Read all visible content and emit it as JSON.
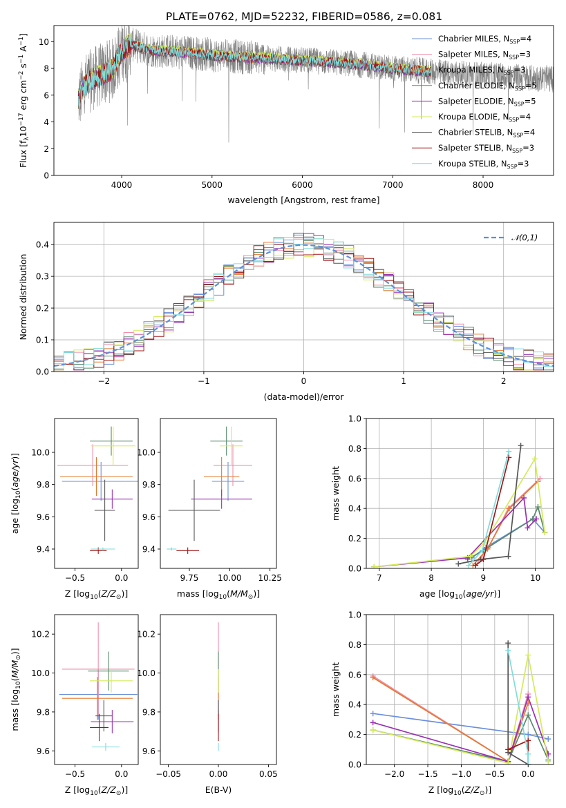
{
  "figure_title": "PLATE=0762, MJD=52232, FIBERID=0586, z=0.081",
  "series": [
    {
      "name": "Chabrier MILES, N_SSP=4",
      "leg_main": "Chabrier MILES, N",
      "leg_sub": "SSP",
      "leg_tail": "=4",
      "color": "#6a8fdc"
    },
    {
      "name": "Salpeter MILES, N_SSP=3",
      "leg_main": "Salpeter MILES, N",
      "leg_sub": "SSP",
      "leg_tail": "=3",
      "color": "#f08eaa"
    },
    {
      "name": "Kroupa MILES, N_SSP=3",
      "leg_main": "Kroupa MILES, N",
      "leg_sub": "SSP",
      "leg_tail": "=3",
      "color": "#e6782e"
    },
    {
      "name": "Chabrier ELODIE, N_SSP=5",
      "leg_main": "Chabrier ELODIE, N",
      "leg_sub": "SSP",
      "leg_tail": "=5",
      "color": "#5a8a6e"
    },
    {
      "name": "Salpeter ELODIE, N_SSP=5",
      "leg_main": "Salpeter ELODIE, N",
      "leg_sub": "SSP",
      "leg_tail": "=5",
      "color": "#9b30b4"
    },
    {
      "name": "Kroupa ELODIE, N_SSP=4",
      "leg_main": "Kroupa ELODIE, N",
      "leg_sub": "SSP",
      "leg_tail": "=4",
      "color": "#d4ea5a"
    },
    {
      "name": "Chabrier STELIB, N_SSP=4",
      "leg_main": "Chabrier STELIB, N",
      "leg_sub": "SSP",
      "leg_tail": "=4",
      "color": "#555555"
    },
    {
      "name": "Salpeter STELIB, N_SSP=3",
      "leg_main": "Salpeter STELIB, N",
      "leg_sub": "SSP",
      "leg_tail": "=3",
      "color": "#a01616"
    },
    {
      "name": "Kroupa STELIB, N_SSP=3",
      "leg_main": "Kroupa STELIB, N",
      "leg_sub": "SSP",
      "leg_tail": "=3",
      "color": "#7fdcdc"
    }
  ],
  "chart_data": [
    {
      "id": "spectrum",
      "type": "line",
      "xlabel": "wavelength [Angstrom, rest frame]",
      "ylabel": "Flux [f_λ 10^-17 erg cm^-2 s^-1 A^-1]",
      "ylabel_parts": {
        "a": "Flux [f",
        "b": "λ",
        "c": "10",
        "d": "−17",
        "e": " erg cm",
        "f": "−2",
        "g": " s",
        "h": "−1",
        "i": " A",
        "j": "−1",
        "k": "]"
      },
      "xlim": [
        3250,
        8780
      ],
      "ylim": [
        0,
        11.2
      ],
      "xticks": [
        4000,
        5000,
        6000,
        7000,
        8000
      ],
      "yticks": [
        0,
        2,
        4,
        6,
        8,
        10
      ],
      "data_color": "#808080",
      "data_wavelength_range": [
        3520,
        8780
      ],
      "continuum": {
        "x": [
          3520,
          3600,
          3700,
          3800,
          3900,
          4000,
          4100,
          4200,
          4300,
          4400,
          4500,
          4700,
          5000,
          5200,
          5500,
          6000,
          6500,
          7000,
          7500,
          8000,
          8500,
          8780
        ],
        "y": [
          5.6,
          6.8,
          7.3,
          7.6,
          7.9,
          9.3,
          9.8,
          9.6,
          9.4,
          9.3,
          9.3,
          9.2,
          9.0,
          8.9,
          8.8,
          8.6,
          8.4,
          8.0,
          7.7,
          7.5,
          7.3,
          7.2
        ]
      },
      "grid": false,
      "legend_position": "upper right"
    },
    {
      "id": "residuals",
      "type": "histogram",
      "xlabel": "(data-model)/error",
      "ylabel": "Normed distribution",
      "xlim": [
        -2.5,
        2.5
      ],
      "ylim": [
        0,
        0.47
      ],
      "xticks": [
        -2,
        -1,
        0,
        1,
        2
      ],
      "xtick_labels": [
        "−2",
        "−1",
        "0",
        "1",
        "2"
      ],
      "yticks": [
        0.0,
        0.1,
        0.2,
        0.3,
        0.4
      ],
      "ytick_labels": [
        "0.0",
        "0.1",
        "0.2",
        "0.3",
        "0.4"
      ],
      "bin_width": 0.1,
      "reference_curve": {
        "name": "𝒩(0,1)",
        "type": "normal",
        "mean": 0,
        "sigma": 1,
        "color": "#5b8fd9",
        "style": "dashed"
      },
      "grid": true,
      "legend_position": "upper right"
    },
    {
      "id": "age_vs_Z",
      "type": "errorbar",
      "xlabel": "Z [log10(Z/Z⊙)]",
      "ylabel": "age [log10(age/yr)]",
      "xlim": [
        -0.72,
        0.18
      ],
      "ylim": [
        9.28,
        10.21
      ],
      "xticks": [
        -0.5,
        0.0
      ],
      "xtick_labels": [
        "−0.5",
        "0.0"
      ],
      "yticks": [
        9.4,
        9.6,
        9.8,
        10.0
      ],
      "ytick_labels": [
        "9.4",
        "9.6",
        "9.8",
        "10.0"
      ],
      "points": [
        {
          "x": -0.22,
          "xerr": 0.42,
          "y": 9.82,
          "yerr": 0.12
        },
        {
          "x": -0.31,
          "xerr": 0.38,
          "y": 9.92,
          "yerr": 0.13
        },
        {
          "x": -0.27,
          "xerr": 0.39,
          "y": 9.85,
          "yerr": 0.12
        },
        {
          "x": -0.11,
          "xerr": 0.23,
          "y": 10.07,
          "yerr": 0.09
        },
        {
          "x": -0.1,
          "xerr": 0.22,
          "y": 9.71,
          "yerr": 0.06
        },
        {
          "x": -0.09,
          "xerr": 0.24,
          "y": 10.04,
          "yerr": 0.12
        },
        {
          "x": -0.18,
          "xerr": 0.11,
          "y": 9.64,
          "yerr": 0.19
        },
        {
          "x": -0.25,
          "xerr": 0.09,
          "y": 9.39,
          "yerr": 0.02
        },
        {
          "x": -0.2,
          "xerr": 0.13,
          "y": 9.4,
          "yerr": 0.01
        }
      ]
    },
    {
      "id": "age_vs_mass",
      "type": "errorbar",
      "xlabel": "mass [log10(M/M⊙)]",
      "xlim": [
        9.57,
        10.29
      ],
      "ylim": [
        9.28,
        10.21
      ],
      "xticks": [
        9.75,
        10.0,
        10.25
      ],
      "xtick_labels": [
        "9.75",
        "10.00",
        "10.25"
      ],
      "yticks": [
        9.4,
        9.6,
        9.8,
        10.0
      ],
      "ytick_labels": [
        "9.4",
        "9.6",
        "9.8",
        "10.0"
      ],
      "points": [
        {
          "x": 9.99,
          "xerr": 0.1,
          "y": 9.82,
          "yerr": 0.12
        },
        {
          "x": 10.02,
          "xerr": 0.12,
          "y": 9.92,
          "yerr": 0.13
        },
        {
          "x": 9.95,
          "xerr": 0.11,
          "y": 9.85,
          "yerr": 0.12
        },
        {
          "x": 9.98,
          "xerr": 0.1,
          "y": 10.07,
          "yerr": 0.09
        },
        {
          "x": 9.95,
          "xerr": 0.19,
          "y": 9.71,
          "yerr": 0.06
        },
        {
          "x": 10.01,
          "xerr": 0.07,
          "y": 10.04,
          "yerr": 0.12
        },
        {
          "x": 9.78,
          "xerr": 0.16,
          "y": 9.64,
          "yerr": 0.19
        },
        {
          "x": 9.74,
          "xerr": 0.07,
          "y": 9.39,
          "yerr": 0.02
        },
        {
          "x": 9.64,
          "xerr": 0.03,
          "y": 9.4,
          "yerr": 0.01
        }
      ]
    },
    {
      "id": "weight_vs_age",
      "type": "line",
      "xlabel": "age [log10(age/yr)]",
      "ylabel": "mass weight",
      "xlim": [
        6.75,
        10.35
      ],
      "ylim": [
        0,
        1
      ],
      "xticks": [
        7,
        8,
        9,
        10
      ],
      "yticks": [
        0.0,
        0.2,
        0.4,
        0.6,
        0.8,
        1.0
      ],
      "ytick_labels": [
        "0.0",
        "0.2",
        "0.4",
        "0.6",
        "0.8",
        "1.0"
      ],
      "lines": [
        {
          "x": [
            8.78,
            9.05,
            9.95,
            10.18
          ],
          "y": [
            0.07,
            0.14,
            0.33,
            0.24
          ]
        },
        {
          "x": [
            8.85,
            9.1,
            9.48,
            10.09
          ],
          "y": [
            0.02,
            0.14,
            0.4,
            0.6
          ]
        },
        {
          "x": [
            8.8,
            9.08,
            9.5,
            10.05
          ],
          "y": [
            0.02,
            0.13,
            0.4,
            0.58
          ]
        },
        {
          "x": [
            8.7,
            9.0,
            9.95,
            10.05,
            10.18
          ],
          "y": [
            0.06,
            0.12,
            0.33,
            0.41,
            0.24
          ]
        },
        {
          "x": [
            6.9,
            8.7,
            9.78,
            9.85,
            10.02
          ],
          "y": [
            0.01,
            0.07,
            0.47,
            0.27,
            0.33
          ]
        },
        {
          "x": [
            6.9,
            8.75,
            9.02,
            9.99,
            10.18
          ],
          "y": [
            0.01,
            0.08,
            0.17,
            0.73,
            0.24
          ]
        },
        {
          "x": [
            8.52,
            8.95,
            9.48,
            9.72
          ],
          "y": [
            0.03,
            0.06,
            0.08,
            0.82
          ]
        },
        {
          "x": [
            8.85,
            9.0,
            9.49
          ],
          "y": [
            0.02,
            0.06,
            0.74
          ]
        },
        {
          "x": [
            8.72,
            8.98,
            9.49
          ],
          "y": [
            0.02,
            0.12,
            0.78
          ]
        }
      ],
      "grid": true
    },
    {
      "id": "mass_vs_Z",
      "type": "errorbar",
      "xlabel": "Z [log10(Z/Z⊙)]",
      "ylabel": "mass [log10(M/M⊙)]",
      "xlim": [
        -0.72,
        0.18
      ],
      "ylim": [
        9.53,
        10.3
      ],
      "xticks": [
        -0.5,
        0.0
      ],
      "xtick_labels": [
        "−0.5",
        "0.0"
      ],
      "yticks": [
        9.6,
        9.8,
        10.0,
        10.2
      ],
      "ytick_labels": [
        "9.6",
        "9.8",
        "10.0",
        "10.2"
      ],
      "points": [
        {
          "x": -0.25,
          "xerr": 0.42,
          "y": 9.89,
          "yerr": 0.13
        },
        {
          "x": -0.25,
          "xerr": 0.39,
          "y": 10.02,
          "yerr": 0.24
        },
        {
          "x": -0.26,
          "xerr": 0.38,
          "y": 9.87,
          "yerr": 0.11
        },
        {
          "x": -0.14,
          "xerr": 0.22,
          "y": 10.01,
          "yerr": 0.1
        },
        {
          "x": -0.1,
          "xerr": 0.23,
          "y": 9.75,
          "yerr": 0.06
        },
        {
          "x": -0.11,
          "xerr": 0.23,
          "y": 9.96,
          "yerr": 0.06
        },
        {
          "x": -0.19,
          "xerr": 0.09,
          "y": 9.78,
          "yerr": 0.08
        },
        {
          "x": -0.24,
          "xerr": 0.1,
          "y": 9.72,
          "yerr": 0.07
        },
        {
          "x": -0.17,
          "xerr": 0.15,
          "y": 9.62,
          "yerr": 0.02
        }
      ]
    },
    {
      "id": "mass_vs_EBV",
      "type": "errorbar",
      "xlabel": "E(B-V)",
      "xlim": [
        -0.058,
        0.058
      ],
      "ylim": [
        9.53,
        10.3
      ],
      "xticks": [
        -0.05,
        0.0,
        0.05
      ],
      "xtick_labels": [
        "−0.05",
        "0.00",
        "0.05"
      ],
      "yticks": [
        9.6,
        9.8,
        10.0,
        10.2
      ],
      "ytick_labels": [
        "9.6",
        "9.8",
        "10.0",
        "10.2"
      ],
      "points": [
        {
          "x": 0,
          "xerr": 0,
          "y": 9.89,
          "yerr": 0.13
        },
        {
          "x": 0,
          "xerr": 0,
          "y": 10.02,
          "yerr": 0.24
        },
        {
          "x": 0,
          "xerr": 0,
          "y": 9.87,
          "yerr": 0.11
        },
        {
          "x": 0,
          "xerr": 0,
          "y": 10.01,
          "yerr": 0.1
        },
        {
          "x": 0,
          "xerr": 0,
          "y": 9.75,
          "yerr": 0.06
        },
        {
          "x": 0,
          "xerr": 0,
          "y": 9.96,
          "yerr": 0.06
        },
        {
          "x": 0,
          "xerr": 0,
          "y": 9.78,
          "yerr": 0.08
        },
        {
          "x": 0,
          "xerr": 0,
          "y": 9.72,
          "yerr": 0.07
        },
        {
          "x": 0,
          "xerr": 0,
          "y": 9.62,
          "yerr": 0.02
        }
      ]
    },
    {
      "id": "weight_vs_Z",
      "type": "line",
      "xlabel": "Z [log10(Z/Z⊙)]",
      "ylabel": "mass weight",
      "xlim": [
        -2.42,
        0.38
      ],
      "ylim": [
        0,
        1
      ],
      "xticks": [
        -2.0,
        -1.5,
        -1.0,
        -0.5,
        0.0
      ],
      "xtick_labels": [
        "−2.0",
        "−1.5",
        "−1.0",
        "−0.5",
        "0.0"
      ],
      "yticks": [
        0.0,
        0.2,
        0.4,
        0.6,
        0.8,
        1.0
      ],
      "ytick_labels": [
        "0.0",
        "0.2",
        "0.4",
        "0.6",
        "0.8",
        "1.0"
      ],
      "lines": [
        {
          "x": [
            -2.32,
            0.0,
            0.3
          ],
          "y": [
            0.34,
            0.2,
            0.17
          ]
        },
        {
          "x": [
            -2.32,
            -0.3,
            0.0
          ],
          "y": [
            0.59,
            0.02,
            0.47
          ]
        },
        {
          "x": [
            -2.32,
            -0.3,
            0.0
          ],
          "y": [
            0.58,
            0.02,
            0.41
          ]
        },
        {
          "x": [
            -2.32,
            -0.3,
            0.0,
            0.3
          ],
          "y": [
            0.23,
            0.02,
            0.33,
            0.03
          ]
        },
        {
          "x": [
            -2.32,
            -0.3,
            0.0,
            0.3
          ],
          "y": [
            0.28,
            0.02,
            0.45,
            0.07
          ]
        },
        {
          "x": [
            -2.32,
            -0.3,
            0.0,
            0.3
          ],
          "y": [
            0.23,
            0.01,
            0.73,
            0.02
          ]
        },
        {
          "x": [
            -0.3,
            -0.3,
            0.0
          ],
          "y": [
            0.81,
            0.08,
            0.0
          ]
        },
        {
          "x": [
            -0.3,
            0.0,
            0.0
          ],
          "y": [
            0.1,
            0.16,
            0.0
          ]
        },
        {
          "x": [
            -0.3,
            0.0,
            0.0
          ],
          "y": [
            0.76,
            0.07,
            0.0
          ]
        }
      ],
      "grid": true
    }
  ]
}
